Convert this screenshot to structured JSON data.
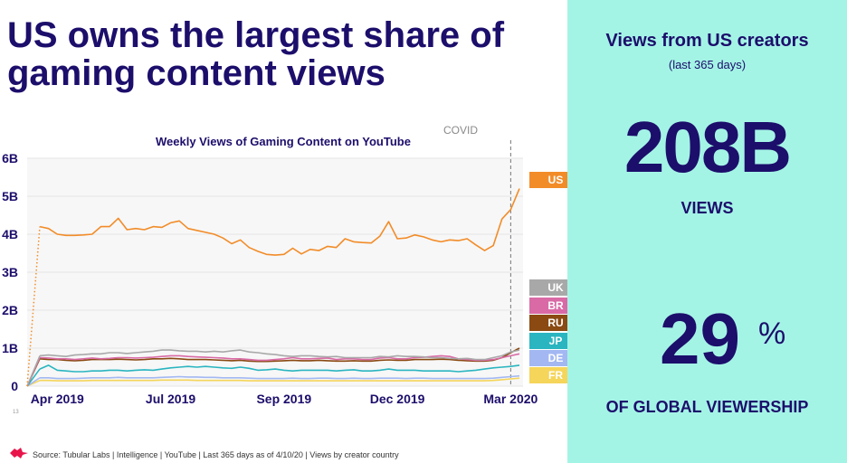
{
  "headline": "US owns the largest share of gaming content views",
  "panel": {
    "heading": "Views from US creators",
    "subheading": "(last 365 days)",
    "views_value": "208B",
    "views_label": "VIEWS",
    "share_value": "29",
    "share_unit": "%",
    "share_label": "OF GLOBAL VIEWERSHIP"
  },
  "annotation": "COVID",
  "footer": {
    "source": "Source: Tubular Labs | Intelligence | YouTube | Last 365 days as of 4/10/20 | Views by creator country",
    "fragment": "13"
  },
  "colors": {
    "brand": "#1c0e6b",
    "panel_bg": "#a4f4e6",
    "logo": "#e8154b"
  },
  "chart_data": {
    "type": "line",
    "title": "Weekly Views of Gaming Content on YouTube",
    "xlabel": "",
    "ylabel": "",
    "ylim": [
      0,
      6
    ],
    "y_ticks": [
      {
        "value": 0,
        "label": "0"
      },
      {
        "value": 1,
        "label": "1B"
      },
      {
        "value": 2,
        "label": "2B"
      },
      {
        "value": 3,
        "label": "3B"
      },
      {
        "value": 4,
        "label": "4B"
      },
      {
        "value": 5,
        "label": "5B"
      },
      {
        "value": 6,
        "label": "6B"
      }
    ],
    "x_ticks": [
      {
        "week": 2,
        "label": "Apr 2019"
      },
      {
        "week": 15,
        "label": "Jul 2019"
      },
      {
        "week": 28,
        "label": "Sep 2019"
      },
      {
        "week": 41,
        "label": "Dec 2019"
      },
      {
        "week": 54,
        "label": "Mar 2020"
      }
    ],
    "covid_week": 54,
    "series": [
      {
        "name": "US",
        "color": "#f28c28",
        "values": [
          4.2,
          4.15,
          4.0,
          3.97,
          3.97,
          3.98,
          4.0,
          4.2,
          4.2,
          4.42,
          4.12,
          4.15,
          4.12,
          4.2,
          4.18,
          4.3,
          4.35,
          4.15,
          4.1,
          4.05,
          4.0,
          3.9,
          3.75,
          3.85,
          3.65,
          3.55,
          3.47,
          3.45,
          3.47,
          3.63,
          3.48,
          3.6,
          3.57,
          3.68,
          3.65,
          3.88,
          3.8,
          3.78,
          3.77,
          3.95,
          4.33,
          3.88,
          3.9,
          3.98,
          3.93,
          3.85,
          3.8,
          3.85,
          3.83,
          3.88,
          3.72,
          3.57,
          3.7,
          4.4,
          4.65,
          5.2
        ]
      },
      {
        "name": "UK",
        "color": "#a8a8a8",
        "values": [
          0.8,
          0.82,
          0.8,
          0.78,
          0.82,
          0.83,
          0.85,
          0.85,
          0.88,
          0.88,
          0.86,
          0.88,
          0.9,
          0.92,
          0.95,
          0.95,
          0.93,
          0.92,
          0.92,
          0.9,
          0.92,
          0.9,
          0.93,
          0.95,
          0.9,
          0.88,
          0.85,
          0.83,
          0.8,
          0.78,
          0.8,
          0.8,
          0.78,
          0.77,
          0.78,
          0.75,
          0.75,
          0.75,
          0.75,
          0.78,
          0.77,
          0.8,
          0.78,
          0.78,
          0.77,
          0.75,
          0.75,
          0.73,
          0.72,
          0.73,
          0.7,
          0.7,
          0.75,
          0.8,
          0.9,
          0.95
        ]
      },
      {
        "name": "BR",
        "color": "#d96aa6",
        "values": [
          0.75,
          0.74,
          0.72,
          0.72,
          0.7,
          0.72,
          0.74,
          0.72,
          0.73,
          0.75,
          0.75,
          0.74,
          0.75,
          0.76,
          0.78,
          0.8,
          0.8,
          0.78,
          0.77,
          0.76,
          0.75,
          0.74,
          0.72,
          0.72,
          0.7,
          0.68,
          0.68,
          0.7,
          0.72,
          0.75,
          0.72,
          0.72,
          0.73,
          0.74,
          0.7,
          0.72,
          0.72,
          0.7,
          0.7,
          0.74,
          0.75,
          0.72,
          0.72,
          0.75,
          0.76,
          0.78,
          0.8,
          0.78,
          0.72,
          0.7,
          0.68,
          0.68,
          0.7,
          0.75,
          0.8,
          0.85
        ]
      },
      {
        "name": "RU",
        "color": "#8a4a12",
        "values": [
          0.72,
          0.7,
          0.7,
          0.68,
          0.67,
          0.68,
          0.7,
          0.7,
          0.7,
          0.71,
          0.7,
          0.69,
          0.7,
          0.72,
          0.72,
          0.73,
          0.72,
          0.7,
          0.7,
          0.7,
          0.69,
          0.68,
          0.67,
          0.68,
          0.66,
          0.65,
          0.65,
          0.66,
          0.67,
          0.68,
          0.67,
          0.67,
          0.68,
          0.67,
          0.66,
          0.66,
          0.67,
          0.66,
          0.66,
          0.68,
          0.69,
          0.68,
          0.68,
          0.7,
          0.7,
          0.7,
          0.71,
          0.7,
          0.68,
          0.67,
          0.66,
          0.66,
          0.68,
          0.75,
          0.88,
          1.0
        ]
      },
      {
        "name": "JP",
        "color": "#2ab5c0",
        "values": [
          0.45,
          0.55,
          0.42,
          0.4,
          0.38,
          0.38,
          0.4,
          0.4,
          0.42,
          0.42,
          0.4,
          0.42,
          0.43,
          0.42,
          0.45,
          0.48,
          0.5,
          0.52,
          0.5,
          0.52,
          0.5,
          0.48,
          0.47,
          0.5,
          0.47,
          0.42,
          0.43,
          0.45,
          0.42,
          0.4,
          0.42,
          0.42,
          0.42,
          0.42,
          0.4,
          0.42,
          0.43,
          0.4,
          0.4,
          0.42,
          0.45,
          0.42,
          0.42,
          0.42,
          0.4,
          0.4,
          0.4,
          0.4,
          0.38,
          0.4,
          0.42,
          0.45,
          0.48,
          0.5,
          0.52,
          0.55
        ]
      },
      {
        "name": "DE",
        "color": "#a3b8f2",
        "values": [
          0.22,
          0.22,
          0.2,
          0.2,
          0.2,
          0.21,
          0.22,
          0.22,
          0.22,
          0.23,
          0.22,
          0.22,
          0.22,
          0.22,
          0.23,
          0.24,
          0.25,
          0.24,
          0.24,
          0.23,
          0.23,
          0.22,
          0.22,
          0.22,
          0.21,
          0.2,
          0.2,
          0.2,
          0.2,
          0.21,
          0.2,
          0.2,
          0.21,
          0.21,
          0.2,
          0.2,
          0.21,
          0.2,
          0.2,
          0.21,
          0.21,
          0.21,
          0.2,
          0.21,
          0.21,
          0.2,
          0.2,
          0.2,
          0.2,
          0.2,
          0.2,
          0.2,
          0.21,
          0.23,
          0.25,
          0.27
        ]
      },
      {
        "name": "FR",
        "color": "#f5d55a",
        "values": [
          0.15,
          0.15,
          0.14,
          0.14,
          0.14,
          0.14,
          0.15,
          0.15,
          0.15,
          0.15,
          0.15,
          0.15,
          0.15,
          0.15,
          0.16,
          0.16,
          0.16,
          0.16,
          0.15,
          0.15,
          0.15,
          0.15,
          0.15,
          0.15,
          0.14,
          0.14,
          0.14,
          0.14,
          0.14,
          0.14,
          0.14,
          0.14,
          0.14,
          0.14,
          0.14,
          0.14,
          0.14,
          0.14,
          0.14,
          0.14,
          0.14,
          0.14,
          0.14,
          0.14,
          0.14,
          0.14,
          0.14,
          0.14,
          0.14,
          0.14,
          0.14,
          0.14,
          0.15,
          0.17,
          0.19,
          0.21
        ]
      }
    ]
  }
}
